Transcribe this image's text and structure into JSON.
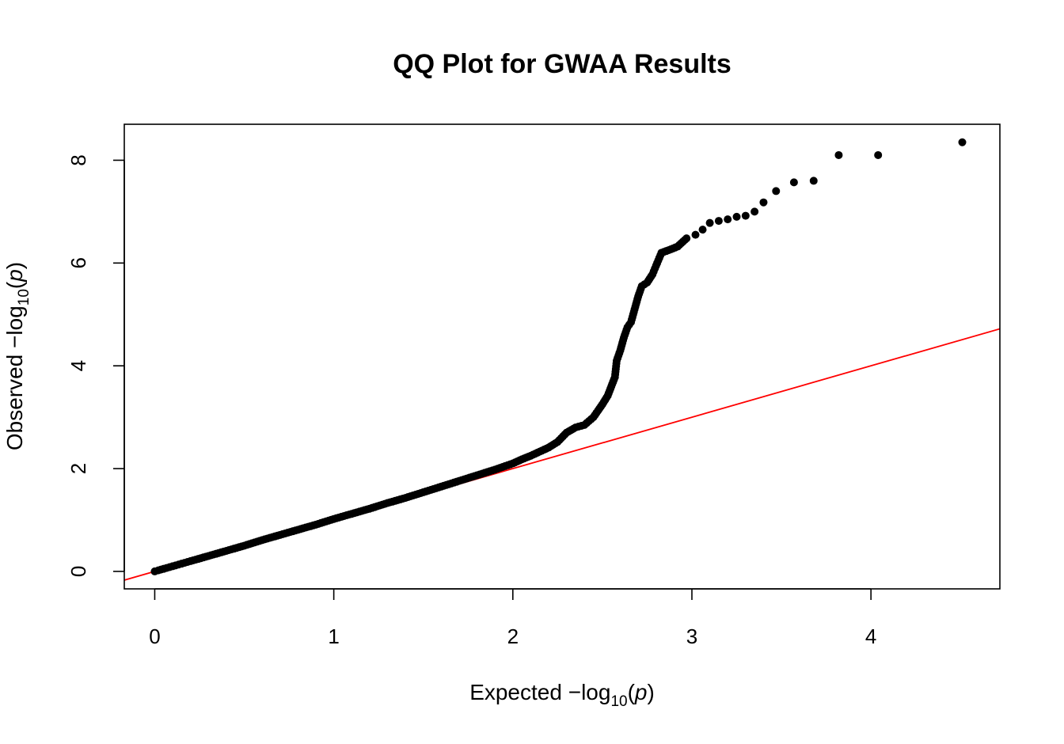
{
  "chart_data": {
    "type": "scatter",
    "title": "QQ Plot for GWAA Results",
    "xlabel": {
      "prefix": "Expected  −log",
      "subscript": "10",
      "open": "(",
      "var": "p",
      "close": ")"
    },
    "ylabel": {
      "prefix": "Observed  −log",
      "subscript": "10",
      "open": "(",
      "var": "p",
      "close": ")"
    },
    "xlim": [
      -0.17,
      4.72
    ],
    "ylim": [
      -0.34,
      8.7
    ],
    "x_ticks": [
      0,
      1,
      2,
      3,
      4
    ],
    "x_tick_labels": [
      "0",
      "1",
      "2",
      "3",
      "4"
    ],
    "y_ticks": [
      0,
      2,
      4,
      6,
      8
    ],
    "y_tick_labels": [
      "0",
      "2",
      "4",
      "6",
      "8"
    ],
    "grid": false,
    "legend": "none",
    "reference_line": {
      "slope": 1,
      "intercept": 0,
      "color": "#ff0000"
    },
    "point_color": "#000000",
    "series": [
      {
        "points": [
          [
            0.0,
            0.0
          ],
          [
            0.02,
            0.02
          ],
          [
            0.05,
            0.05
          ],
          [
            0.1,
            0.1
          ],
          [
            0.15,
            0.15
          ],
          [
            0.2,
            0.2
          ],
          [
            0.3,
            0.3
          ],
          [
            0.4,
            0.4
          ],
          [
            0.5,
            0.5
          ],
          [
            0.6,
            0.61
          ],
          [
            0.7,
            0.71
          ],
          [
            0.8,
            0.81
          ],
          [
            0.9,
            0.91
          ],
          [
            1.0,
            1.02
          ],
          [
            1.1,
            1.12
          ],
          [
            1.2,
            1.22
          ],
          [
            1.3,
            1.33
          ],
          [
            1.4,
            1.43
          ],
          [
            1.5,
            1.54
          ],
          [
            1.6,
            1.65
          ],
          [
            1.7,
            1.76
          ],
          [
            1.8,
            1.87
          ],
          [
            1.9,
            1.98
          ],
          [
            2.0,
            2.1
          ],
          [
            2.05,
            2.18
          ],
          [
            2.1,
            2.25
          ],
          [
            2.15,
            2.33
          ],
          [
            2.2,
            2.41
          ],
          [
            2.25,
            2.52
          ],
          [
            2.3,
            2.7
          ],
          [
            2.35,
            2.8
          ],
          [
            2.4,
            2.85
          ],
          [
            2.45,
            3.0
          ],
          [
            2.5,
            3.25
          ],
          [
            2.53,
            3.42
          ],
          [
            2.55,
            3.6
          ],
          [
            2.57,
            3.78
          ],
          [
            2.58,
            4.1
          ],
          [
            2.6,
            4.3
          ],
          [
            2.62,
            4.55
          ],
          [
            2.64,
            4.75
          ],
          [
            2.66,
            4.85
          ],
          [
            2.68,
            5.1
          ],
          [
            2.7,
            5.35
          ],
          [
            2.72,
            5.55
          ],
          [
            2.75,
            5.62
          ],
          [
            2.78,
            5.78
          ],
          [
            2.8,
            5.95
          ],
          [
            2.83,
            6.2
          ],
          [
            2.87,
            6.25
          ],
          [
            2.92,
            6.32
          ],
          [
            2.97,
            6.48
          ],
          [
            3.02,
            6.55
          ],
          [
            3.06,
            6.65
          ],
          [
            3.1,
            6.78
          ],
          [
            3.15,
            6.82
          ],
          [
            3.2,
            6.85
          ],
          [
            3.25,
            6.9
          ],
          [
            3.3,
            6.92
          ],
          [
            3.35,
            7.0
          ],
          [
            3.4,
            7.18
          ],
          [
            3.47,
            7.4
          ],
          [
            3.57,
            7.57
          ],
          [
            3.68,
            7.6
          ],
          [
            3.82,
            8.1
          ],
          [
            4.04,
            8.1
          ],
          [
            4.51,
            8.35
          ]
        ]
      }
    ]
  }
}
